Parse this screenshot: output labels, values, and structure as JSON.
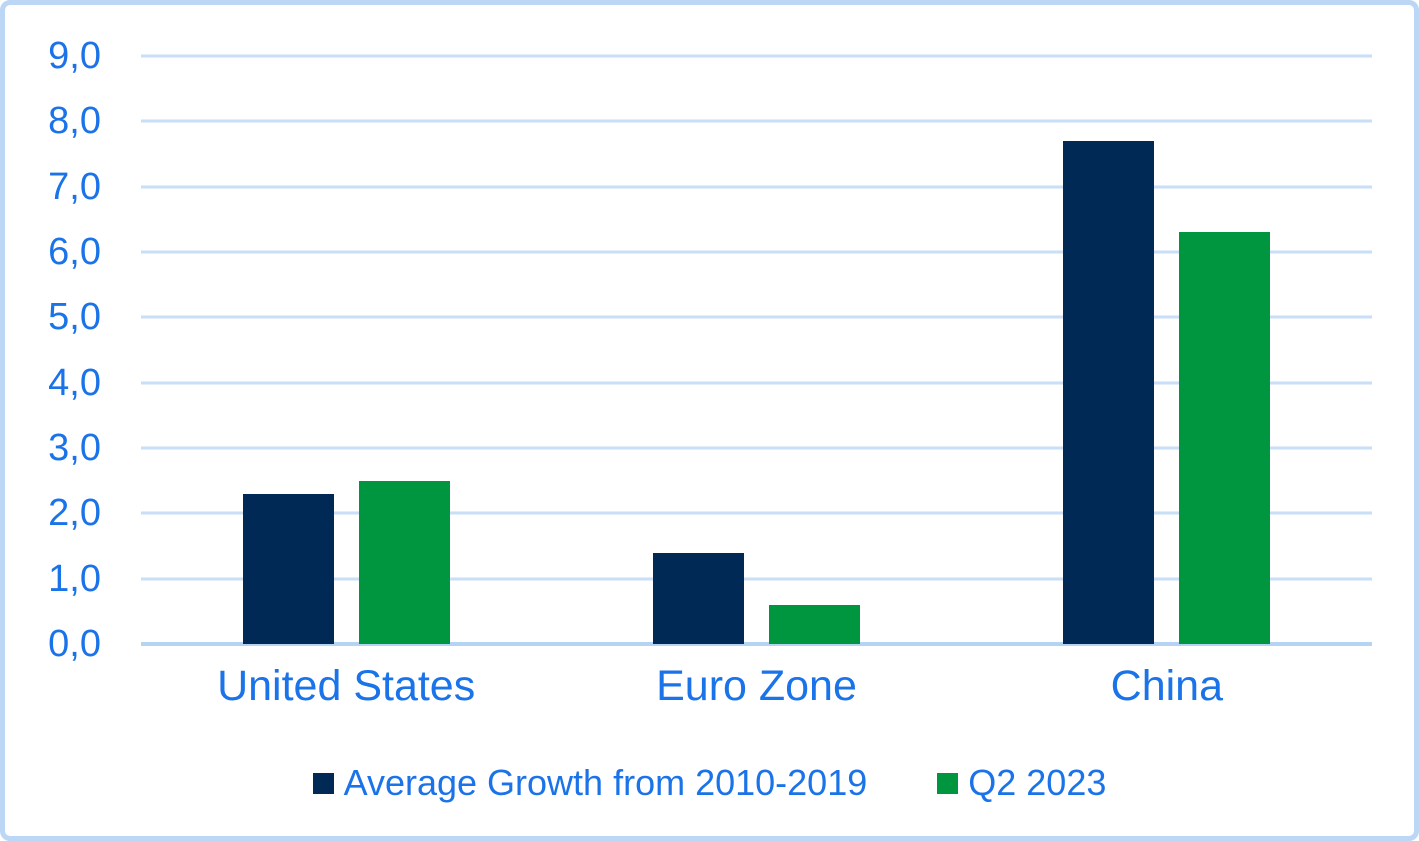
{
  "chart_data": {
    "type": "bar",
    "title": "",
    "categories": [
      "United States",
      "Euro Zone",
      "China"
    ],
    "series": [
      {
        "name": "Average Growth from 2010-2019",
        "values": [
          2.3,
          1.4,
          7.7
        ],
        "color": "#002a55"
      },
      {
        "name": "Q2 2023",
        "values": [
          2.5,
          0.6,
          6.3
        ],
        "color": "#009640"
      }
    ],
    "xlabel": "",
    "ylabel": "",
    "ylim": [
      0,
      9
    ],
    "y_tick_step": 1,
    "y_tick_labels": [
      "0,0",
      "1,0",
      "2,0",
      "3,0",
      "4,0",
      "5,0",
      "6,0",
      "7,0",
      "8,0",
      "9,0"
    ],
    "decimal_separator": ",",
    "grid": true,
    "legend_position": "bottom"
  },
  "colors": {
    "text_blue": "#1a73e8",
    "gridline_blue": "#c9def7",
    "baseline_blue": "#b5d3f2",
    "frame_border_blue": "#bcd7f6",
    "background": "#ffffff",
    "series_1": "#002a55",
    "series_2": "#009640"
  }
}
